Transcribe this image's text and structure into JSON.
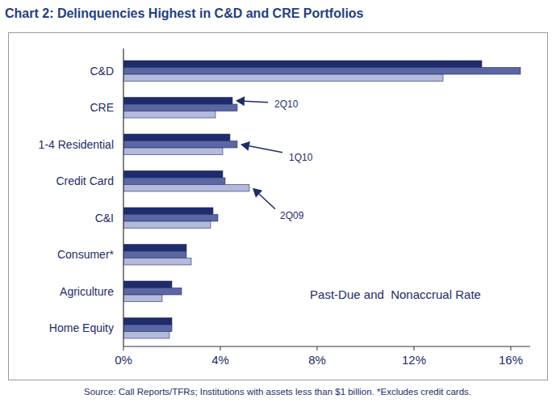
{
  "chart_data": {
    "type": "bar",
    "orientation": "horizontal",
    "title": "Chart 2: Delinquencies Highest in C&D and CRE Portfolios",
    "annotations": [
      "Past-Due and  Nonaccrual Rate"
    ],
    "caption": "Source: Call Reports/TFRs; Institutions with assets less than $1 billion. *Excludes credit cards.",
    "categories": [
      "C&D",
      "CRE",
      "1-4 Residential",
      "Credit Card",
      "C&I",
      "Consumer*",
      "Agriculture",
      "Home Equity"
    ],
    "series": [
      {
        "name": "2Q10",
        "color": "#1e2c6b",
        "values": [
          14.8,
          4.5,
          4.4,
          4.1,
          3.7,
          2.6,
          2.0,
          2.0
        ]
      },
      {
        "name": "1Q10",
        "color": "#5a67a3",
        "values": [
          16.4,
          4.7,
          4.7,
          4.2,
          3.9,
          2.6,
          2.4,
          2.0
        ]
      },
      {
        "name": "2Q09",
        "color": "#b3badb",
        "values": [
          13.2,
          3.8,
          4.1,
          5.2,
          3.6,
          2.8,
          1.6,
          1.9
        ]
      }
    ],
    "xlim": [
      0,
      16.8
    ],
    "xticks": [
      {
        "value": 0,
        "label": "0%"
      },
      {
        "value": 4,
        "label": "4%"
      },
      {
        "value": 8,
        "label": "8%"
      },
      {
        "value": 12,
        "label": "12%"
      },
      {
        "value": 16,
        "label": "16%"
      }
    ],
    "grid": false
  }
}
